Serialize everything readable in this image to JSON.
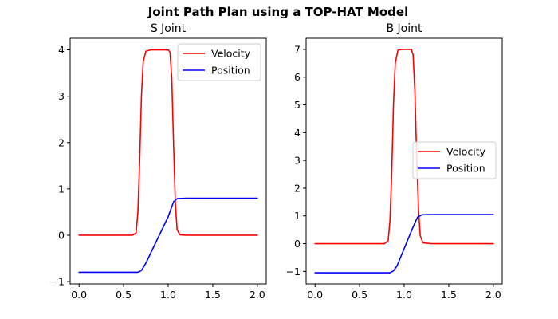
{
  "figure": {
    "suptitle": "Joint Path Plan using a TOP-HAT Model"
  },
  "chart_data": [
    {
      "type": "line",
      "title": "S Joint",
      "xlabel": "",
      "ylabel": "",
      "xlim": [
        -0.1,
        2.1
      ],
      "ylim": [
        -1.05,
        4.25
      ],
      "xticks": [
        0.0,
        0.5,
        1.0,
        1.5,
        2.0
      ],
      "xtick_labels": [
        "0.0",
        "0.5",
        "1.0",
        "1.5",
        "2.0"
      ],
      "yticks": [
        -1,
        0,
        1,
        2,
        3,
        4
      ],
      "ytick_labels": [
        "−1",
        "0",
        "1",
        "2",
        "3",
        "4"
      ],
      "grid": false,
      "legend_position": "upper right",
      "series": [
        {
          "name": "Velocity",
          "color": "#ff0000",
          "points": [
            [
              0.0,
              0.0
            ],
            [
              0.6,
              0.0
            ],
            [
              0.64,
              0.05
            ],
            [
              0.66,
              0.5
            ],
            [
              0.68,
              1.6
            ],
            [
              0.7,
              3.0
            ],
            [
              0.72,
              3.75
            ],
            [
              0.75,
              3.97
            ],
            [
              0.8,
              4.0
            ],
            [
              1.0,
              4.0
            ],
            [
              1.02,
              3.95
            ],
            [
              1.04,
              3.4
            ],
            [
              1.06,
              2.0
            ],
            [
              1.08,
              0.7
            ],
            [
              1.1,
              0.12
            ],
            [
              1.13,
              0.01
            ],
            [
              1.2,
              0.0
            ],
            [
              2.0,
              0.0
            ]
          ]
        },
        {
          "name": "Position",
          "color": "#0000ff",
          "points": [
            [
              0.0,
              -0.8
            ],
            [
              0.66,
              -0.8
            ],
            [
              0.7,
              -0.76
            ],
            [
              0.75,
              -0.6
            ],
            [
              1.0,
              0.4
            ],
            [
              1.06,
              0.72
            ],
            [
              1.1,
              0.79
            ],
            [
              1.2,
              0.8
            ],
            [
              2.0,
              0.8
            ]
          ]
        }
      ]
    },
    {
      "type": "line",
      "title": "B Joint",
      "xlabel": "",
      "ylabel": "",
      "xlim": [
        -0.1,
        2.1
      ],
      "ylim": [
        -1.45,
        7.4
      ],
      "xticks": [
        0.0,
        0.5,
        1.0,
        1.5,
        2.0
      ],
      "xtick_labels": [
        "0.0",
        "0.5",
        "1.0",
        "1.5",
        "2.0"
      ],
      "yticks": [
        -1,
        0,
        1,
        2,
        3,
        4,
        5,
        6,
        7
      ],
      "ytick_labels": [
        "−1",
        "0",
        "1",
        "2",
        "3",
        "4",
        "5",
        "6",
        "7"
      ],
      "grid": false,
      "legend_position": "center right",
      "series": [
        {
          "name": "Velocity",
          "color": "#ff0000",
          "points": [
            [
              0.0,
              0.0
            ],
            [
              0.78,
              0.0
            ],
            [
              0.82,
              0.1
            ],
            [
              0.84,
              0.8
            ],
            [
              0.86,
              2.5
            ],
            [
              0.88,
              5.0
            ],
            [
              0.9,
              6.5
            ],
            [
              0.93,
              6.97
            ],
            [
              0.97,
              7.0
            ],
            [
              1.08,
              7.0
            ],
            [
              1.1,
              6.8
            ],
            [
              1.12,
              5.5
            ],
            [
              1.14,
              3.2
            ],
            [
              1.16,
              1.3
            ],
            [
              1.18,
              0.3
            ],
            [
              1.21,
              0.03
            ],
            [
              1.3,
              0.0
            ],
            [
              2.0,
              0.0
            ]
          ]
        },
        {
          "name": "Position",
          "color": "#0000ff",
          "points": [
            [
              0.0,
              -1.05
            ],
            [
              0.84,
              -1.05
            ],
            [
              0.88,
              -0.98
            ],
            [
              0.92,
              -0.8
            ],
            [
              1.1,
              0.6
            ],
            [
              1.15,
              0.95
            ],
            [
              1.2,
              1.04
            ],
            [
              1.3,
              1.05
            ],
            [
              2.0,
              1.05
            ]
          ]
        }
      ]
    }
  ]
}
